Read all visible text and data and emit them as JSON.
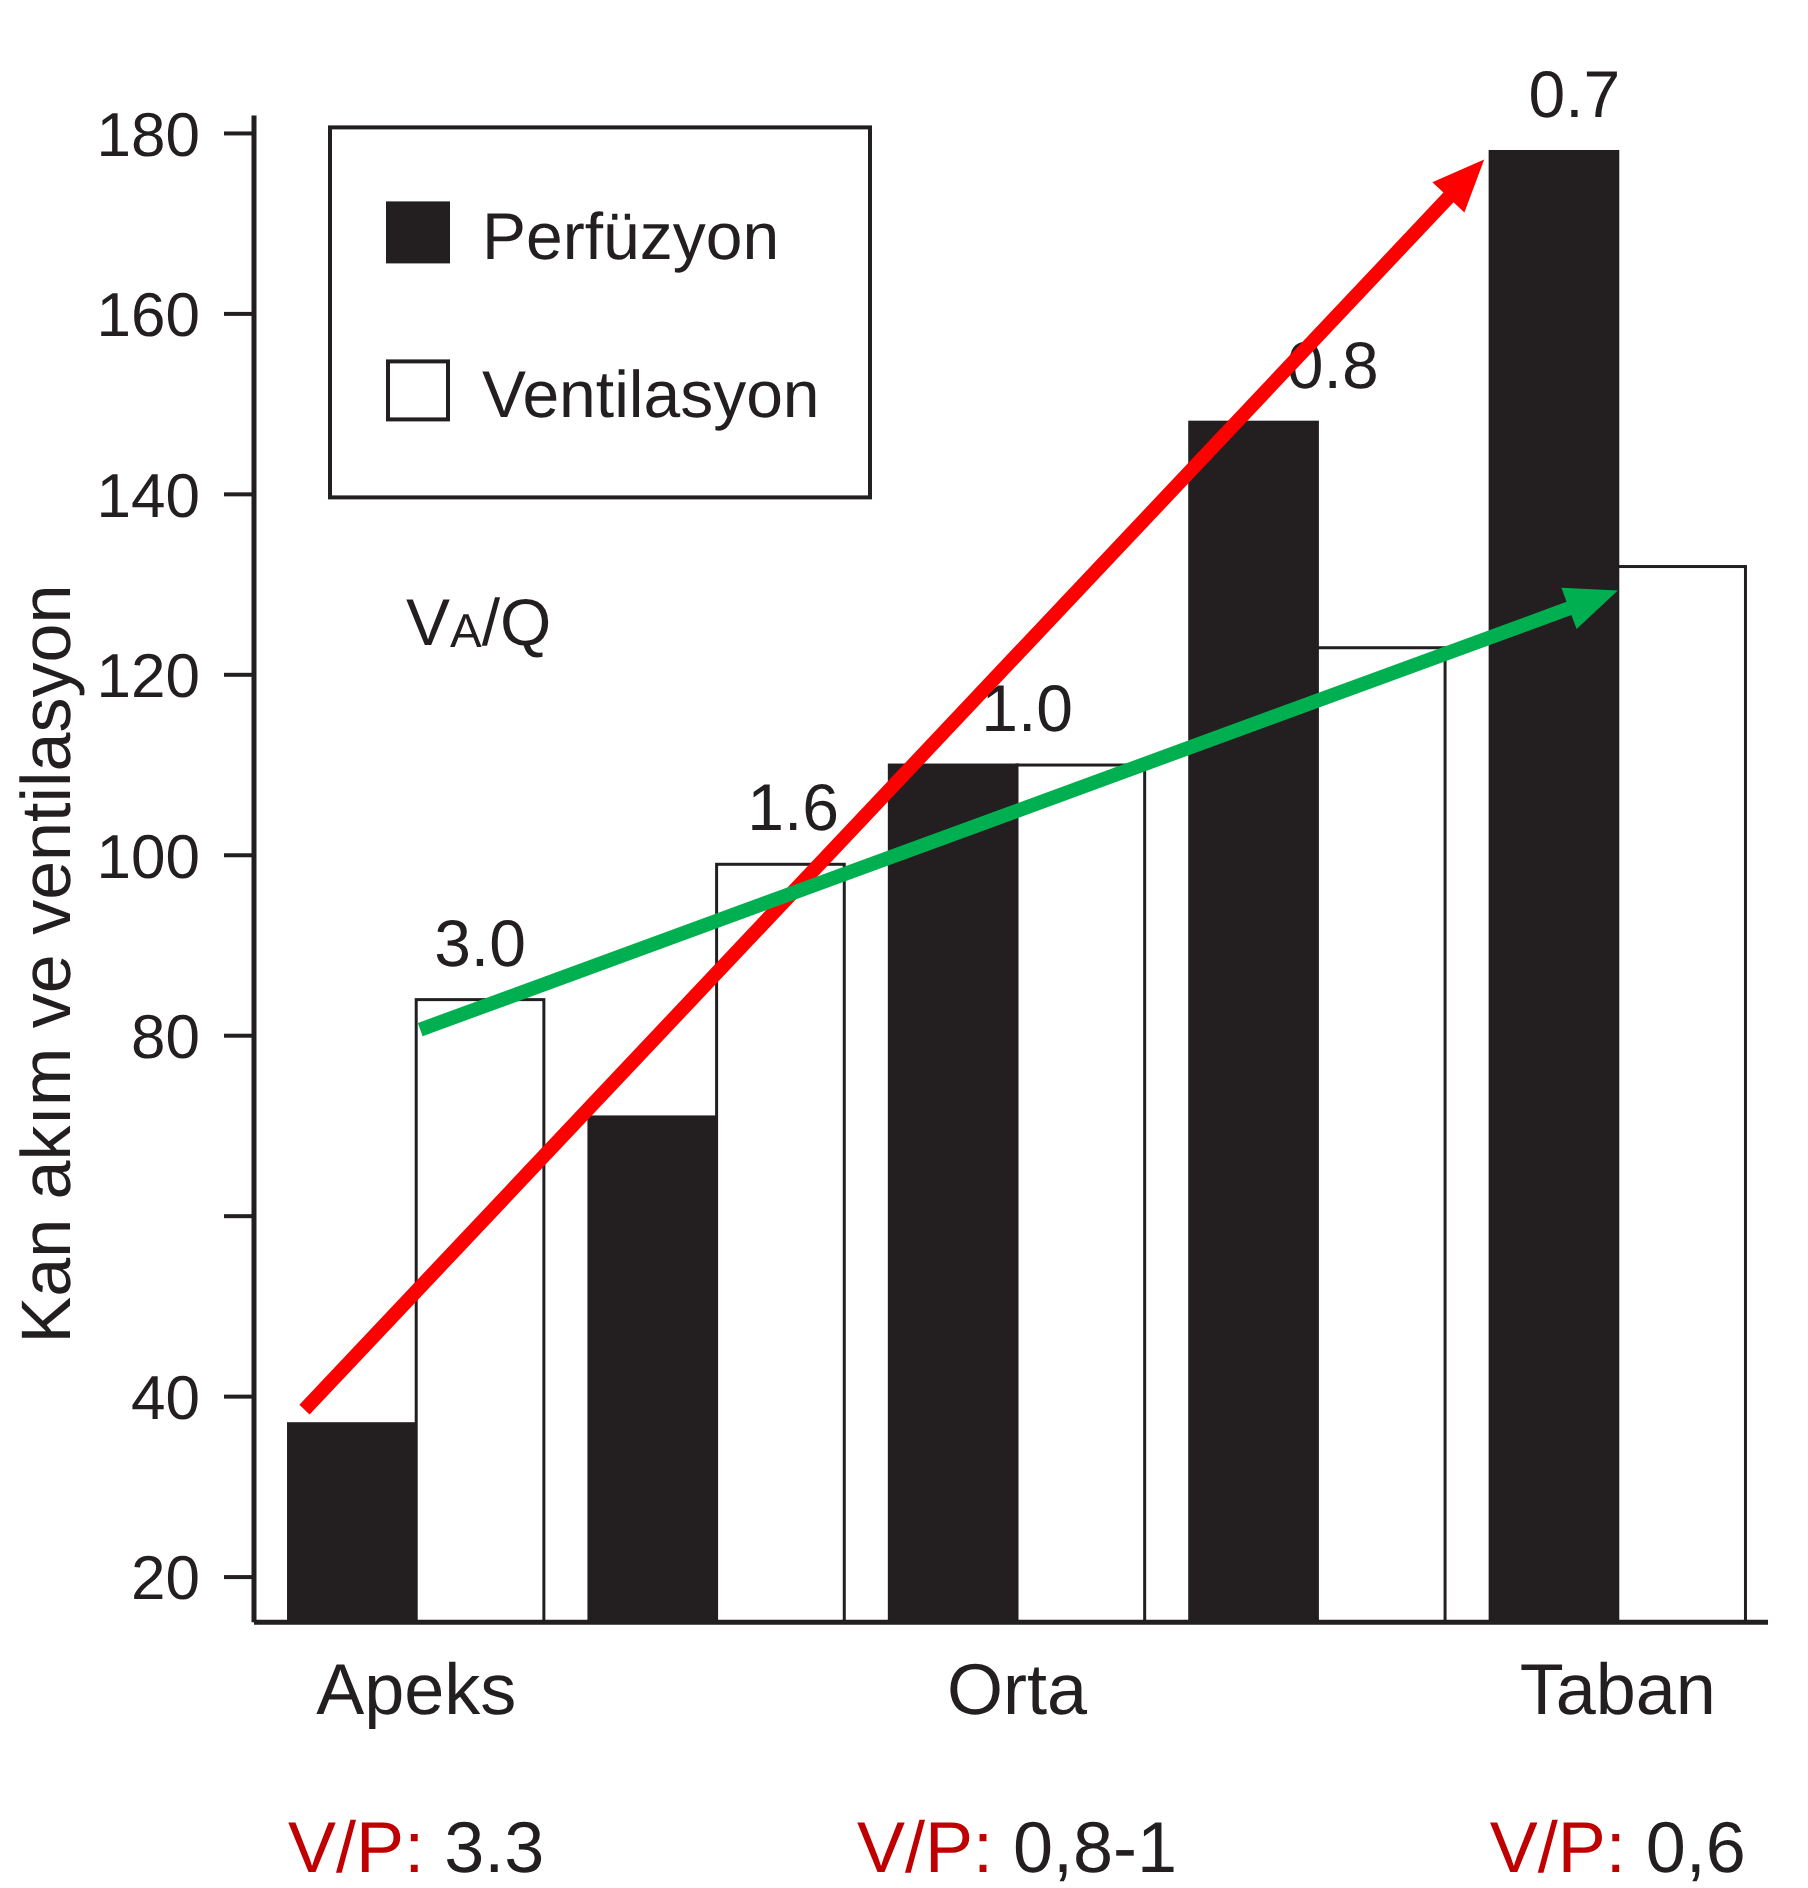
{
  "chart_data": {
    "type": "bar",
    "ylabel": "Kan akım ve ventilasyon",
    "categories": [
      "Apeks",
      null,
      "Orta",
      null,
      "Taban"
    ],
    "series": [
      {
        "name": "Perfüzyon",
        "color": "#231f20",
        "values": [
          37,
          71,
          110,
          148,
          178
        ]
      },
      {
        "name": "Ventilasyon",
        "color": "#ffffff",
        "values": [
          84,
          99,
          110,
          123,
          132
        ]
      }
    ],
    "ylim": [
      15,
      182
    ],
    "yticks": [
      180,
      160,
      140,
      120,
      100,
      80,
      {
        "value": 60,
        "label": null
      },
      40,
      20
    ],
    "legend": "top left",
    "annotations": [
      "V$_{A}$/Q",
      "3.0",
      "1.6",
      "1.0",
      "0.8",
      "0.7",
      "V/P: 3.3",
      "V/P: 0,8-1",
      "V/P: 0,6"
    ]
  }
}
